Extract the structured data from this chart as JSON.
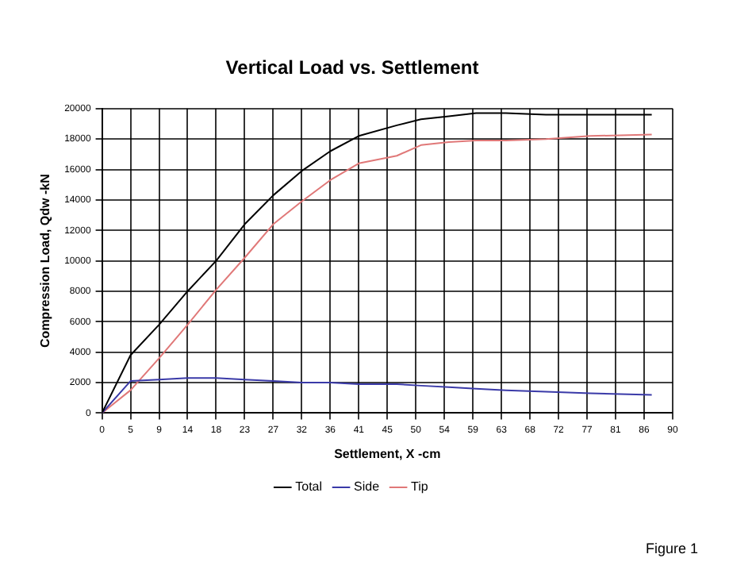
{
  "chart_data": {
    "type": "line",
    "title": "Vertical Load vs. Settlement",
    "xlabel": "Settlement, X -cm",
    "ylabel": "Compression Load, Qdw -kN",
    "x": [
      0,
      4.5,
      9,
      13.5,
      18,
      22.5,
      27,
      31.5,
      36,
      40.5,
      46.5,
      50.3,
      54.7,
      59,
      63.7,
      70,
      77,
      86.7
    ],
    "series": [
      {
        "name": "Total",
        "color": "#000000",
        "values": [
          0,
          3800,
          5800,
          8000,
          10000,
          12400,
          14300,
          15900,
          17200,
          18200,
          18900,
          19300,
          19500,
          19700,
          19700,
          19600,
          19600,
          19600
        ]
      },
      {
        "name": "Side",
        "color": "#3a3aa8",
        "values": [
          0,
          2100,
          2200,
          2300,
          2300,
          2200,
          2100,
          2000,
          2000,
          1900,
          1900,
          1800,
          1700,
          1600,
          1500,
          1400,
          1300,
          1200
        ]
      },
      {
        "name": "Tip",
        "color": "#e07878",
        "values": [
          0,
          1500,
          3600,
          5800,
          8100,
          10200,
          12400,
          13900,
          15300,
          16400,
          16900,
          17600,
          17800,
          17900,
          17900,
          18000,
          18200,
          18300
        ]
      }
    ],
    "xlim": [
      0,
      90
    ],
    "xticks": [
      0,
      {
        "value": 4.5,
        "label": "5"
      },
      9,
      {
        "value": 13.5,
        "label": "14"
      },
      18,
      {
        "value": 22.5,
        "label": "23"
      },
      27,
      {
        "value": 31.5,
        "label": "32"
      },
      36,
      {
        "value": 40.5,
        "label": "41"
      },
      45,
      {
        "value": 49.5,
        "label": "50"
      },
      54,
      {
        "value": 58.5,
        "label": "59"
      },
      63,
      {
        "value": 67.5,
        "label": "68"
      },
      72,
      {
        "value": 76.5,
        "label": "77"
      },
      81,
      {
        "value": 85.5,
        "label": "86"
      },
      90
    ],
    "ylim": [
      0,
      20000
    ],
    "yticks": [
      0,
      2000,
      4000,
      6000,
      8000,
      10000,
      12000,
      14000,
      16000,
      18000,
      20000
    ],
    "grid": true,
    "legend": "bottom",
    "marker": "none",
    "line_style": "solid",
    "annotations": [
      "Figure 1"
    ]
  }
}
